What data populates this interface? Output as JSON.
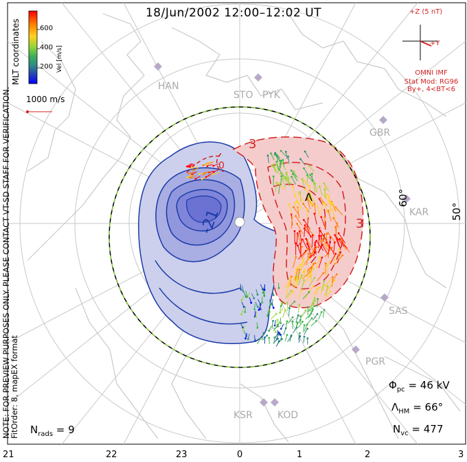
{
  "title": "18/Jun/2002 12:00–12:02 UT",
  "colorbar": {
    "label": "Vel [m/s]",
    "ticks": [
      "600",
      "400",
      "200"
    ],
    "colors": [
      "#ff0000",
      "#ff7f00",
      "#ffd21f",
      "#9ad63a",
      "#3cb44b",
      "#2e8b7a",
      "#1f4ea8",
      "#0000ff"
    ]
  },
  "coords_label": "MLT coordinates",
  "scale_label": "1000 m/s",
  "note": "NOTE: FOR PREVIEW PURPOSES ONLY. PLEASE CONTACT VT-SD STAFF FOR VERIFICATION.",
  "fitorder": "FitOrder: 8, mapEX format",
  "imf": {
    "z_label": "+Z (5 nT)",
    "y_label": "+Y",
    "source": "OMNI IMF",
    "model": "Stat Mod: RG96",
    "condition": "By+, 4<BT<6"
  },
  "stations": [
    "HAN",
    "STO",
    "PYK",
    "GBR",
    "KAR",
    "SAS",
    "PGR",
    "KSR",
    "KOD"
  ],
  "lat_labels": [
    "60°",
    "50°"
  ],
  "contour_labels": {
    "negative": "-21",
    "positive_top": "3",
    "positive_right": "3",
    "small": "0",
    "lambda": "Λ"
  },
  "stats": {
    "phi_pc_sym": "Φ",
    "phi_pc_sub": "pc",
    "phi_pc_val": " = 46 kV",
    "lambda_sym": "Λ",
    "lambda_sub": "HM",
    "lambda_val": " = 66°",
    "nvc_sym": "N",
    "nvc_sub": "vc",
    "nvc_val": " = 477",
    "nrads_sym": "N",
    "nrads_sub": "rads",
    "nrads_val": " = 9"
  },
  "mlt_labels": [
    "21",
    "22",
    "23",
    "0",
    "1",
    "2",
    "3"
  ],
  "colors": {
    "negative_fill": "#c9cbea",
    "negative_line": "#1a3aa8",
    "positive_fill": "#f4c7c7",
    "positive_line": "#d32020",
    "grid": "#c8c8c8"
  }
}
